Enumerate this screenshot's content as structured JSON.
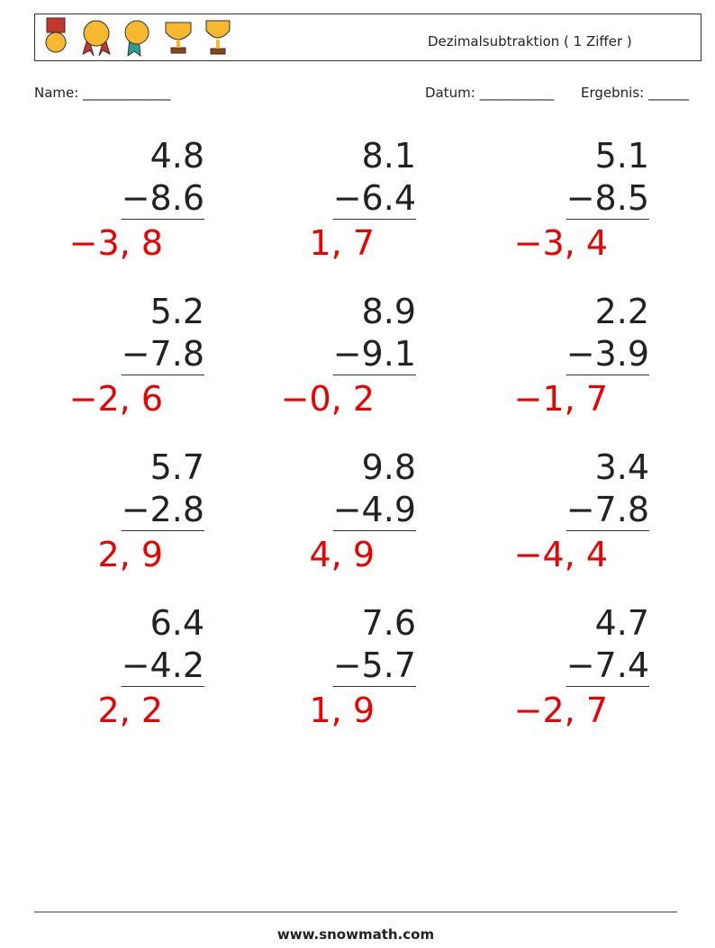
{
  "header": {
    "title": "Dezimalsubtraktion ( 1 Ziffer )"
  },
  "fields": {
    "name": "Name: _____________",
    "date": "Datum: ___________",
    "result": "Ergebnis: ______"
  },
  "problems": [
    {
      "top": "4.8",
      "bottom": "−8.6",
      "answer": "−3, 8"
    },
    {
      "top": "8.1",
      "bottom": "−6.4",
      "answer": "1, 7"
    },
    {
      "top": "5.1",
      "bottom": "−8.5",
      "answer": "−3, 4"
    },
    {
      "top": "5.2",
      "bottom": "−7.8",
      "answer": "−2, 6"
    },
    {
      "top": "8.9",
      "bottom": "−9.1",
      "answer": "−0, 2"
    },
    {
      "top": "2.2",
      "bottom": "−3.9",
      "answer": "−1, 7"
    },
    {
      "top": "5.7",
      "bottom": "−2.8",
      "answer": "2, 9"
    },
    {
      "top": "9.8",
      "bottom": "−4.9",
      "answer": "4, 9"
    },
    {
      "top": "3.4",
      "bottom": "−7.8",
      "answer": "−4, 4"
    },
    {
      "top": "6.4",
      "bottom": "−4.2",
      "answer": "2, 2"
    },
    {
      "top": "7.6",
      "bottom": "−5.7",
      "answer": "1, 9"
    },
    {
      "top": "4.7",
      "bottom": "−7.4",
      "answer": "−2, 7"
    }
  ],
  "footer": {
    "url": "www.snowmath.com"
  }
}
